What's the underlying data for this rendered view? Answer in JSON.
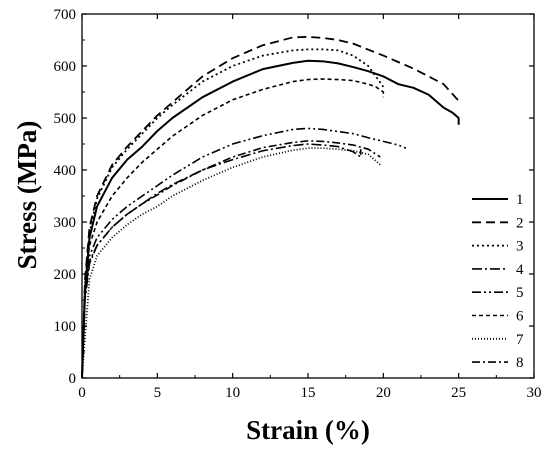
{
  "chart_data": {
    "type": "line",
    "xlabel": "Strain (%)",
    "ylabel": "Stress (MPa)",
    "xlim": [
      0,
      30
    ],
    "ylim": [
      0,
      700
    ],
    "xticks": [
      0,
      5,
      10,
      15,
      20,
      25,
      30
    ],
    "yticks": [
      0,
      100,
      200,
      300,
      400,
      500,
      600,
      700
    ],
    "grid": false,
    "legend_position": "right",
    "series": [
      {
        "name": "1",
        "dash": "",
        "width": 2.0,
        "x": [
          0,
          0.2,
          0.5,
          1,
          2,
          3,
          4,
          5,
          6,
          8,
          10,
          12,
          14,
          15,
          16,
          17,
          18,
          19,
          20,
          21,
          22,
          23,
          24,
          24.6,
          25,
          25
        ],
        "y": [
          0,
          170,
          270,
          330,
          385,
          420,
          445,
          475,
          500,
          540,
          570,
          594,
          606,
          610,
          609,
          605,
          598,
          590,
          580,
          565,
          558,
          545,
          520,
          510,
          500,
          487
        ]
      },
      {
        "name": "2",
        "dash": "9,5",
        "width": 1.8,
        "x": [
          0,
          0.2,
          0.5,
          1,
          2,
          3,
          4,
          5,
          6,
          8,
          10,
          12,
          14,
          15,
          16,
          17,
          18,
          20,
          22,
          24,
          25
        ],
        "y": [
          0,
          190,
          290,
          350,
          410,
          445,
          475,
          505,
          530,
          580,
          615,
          640,
          655,
          656,
          654,
          650,
          643,
          620,
          595,
          565,
          533
        ]
      },
      {
        "name": "3",
        "dash": "2,3",
        "width": 1.8,
        "x": [
          0,
          0.2,
          0.5,
          1,
          2,
          3,
          4,
          5,
          6,
          8,
          10,
          12,
          14,
          15,
          16,
          17,
          18,
          19,
          20
        ],
        "y": [
          0,
          180,
          280,
          345,
          405,
          440,
          470,
          500,
          525,
          570,
          600,
          620,
          630,
          632,
          632,
          630,
          620,
          600,
          560
        ]
      },
      {
        "name": "4",
        "dash": "10,3,2,3",
        "width": 1.6,
        "x": [
          0,
          0.2,
          0.5,
          1,
          2,
          3,
          4,
          5,
          6,
          8,
          10,
          12,
          14,
          15,
          16,
          17,
          18,
          18.5,
          18.5
        ],
        "y": [
          0,
          150,
          220,
          255,
          290,
          315,
          335,
          355,
          372,
          400,
          420,
          437,
          447,
          450,
          448,
          445,
          435,
          425,
          440
        ]
      },
      {
        "name": "5",
        "dash": "9,3,2,3,2,3",
        "width": 1.6,
        "x": [
          0,
          0.2,
          0.5,
          1,
          2,
          3,
          4,
          5,
          6,
          8,
          10,
          12,
          14,
          15,
          16,
          17,
          18,
          19,
          20,
          21,
          21.5
        ],
        "y": [
          0,
          160,
          235,
          270,
          305,
          330,
          350,
          370,
          390,
          425,
          450,
          466,
          478,
          480,
          478,
          474,
          470,
          462,
          455,
          448,
          442
        ]
      },
      {
        "name": "6",
        "dash": "4,3",
        "width": 1.6,
        "x": [
          0,
          0.2,
          0.5,
          1,
          2,
          3,
          4,
          5,
          6,
          8,
          10,
          12,
          14,
          15,
          16,
          17,
          18,
          19,
          19.5,
          20,
          20
        ],
        "y": [
          0,
          175,
          255,
          300,
          350,
          385,
          415,
          440,
          465,
          505,
          535,
          555,
          570,
          574,
          575,
          574,
          572,
          565,
          560,
          550,
          540
        ]
      },
      {
        "name": "7",
        "dash": "1,2",
        "width": 1.8,
        "x": [
          0,
          0.2,
          0.5,
          1,
          2,
          3,
          4,
          5,
          6,
          8,
          10,
          12,
          14,
          15,
          16,
          17,
          18,
          19,
          19.8
        ],
        "y": [
          0,
          80,
          190,
          235,
          270,
          295,
          315,
          330,
          350,
          380,
          405,
          425,
          438,
          442,
          442,
          440,
          437,
          430,
          410
        ]
      },
      {
        "name": "8",
        "dash": "8,3,2,3",
        "width": 1.6,
        "x": [
          0,
          0.2,
          0.5,
          1,
          2,
          3,
          4,
          5,
          6,
          8,
          10,
          12,
          14,
          15,
          16,
          17,
          18,
          19,
          19.8
        ],
        "y": [
          0,
          160,
          225,
          255,
          290,
          315,
          335,
          352,
          370,
          400,
          425,
          443,
          453,
          456,
          455,
          452,
          448,
          440,
          425
        ]
      }
    ]
  }
}
